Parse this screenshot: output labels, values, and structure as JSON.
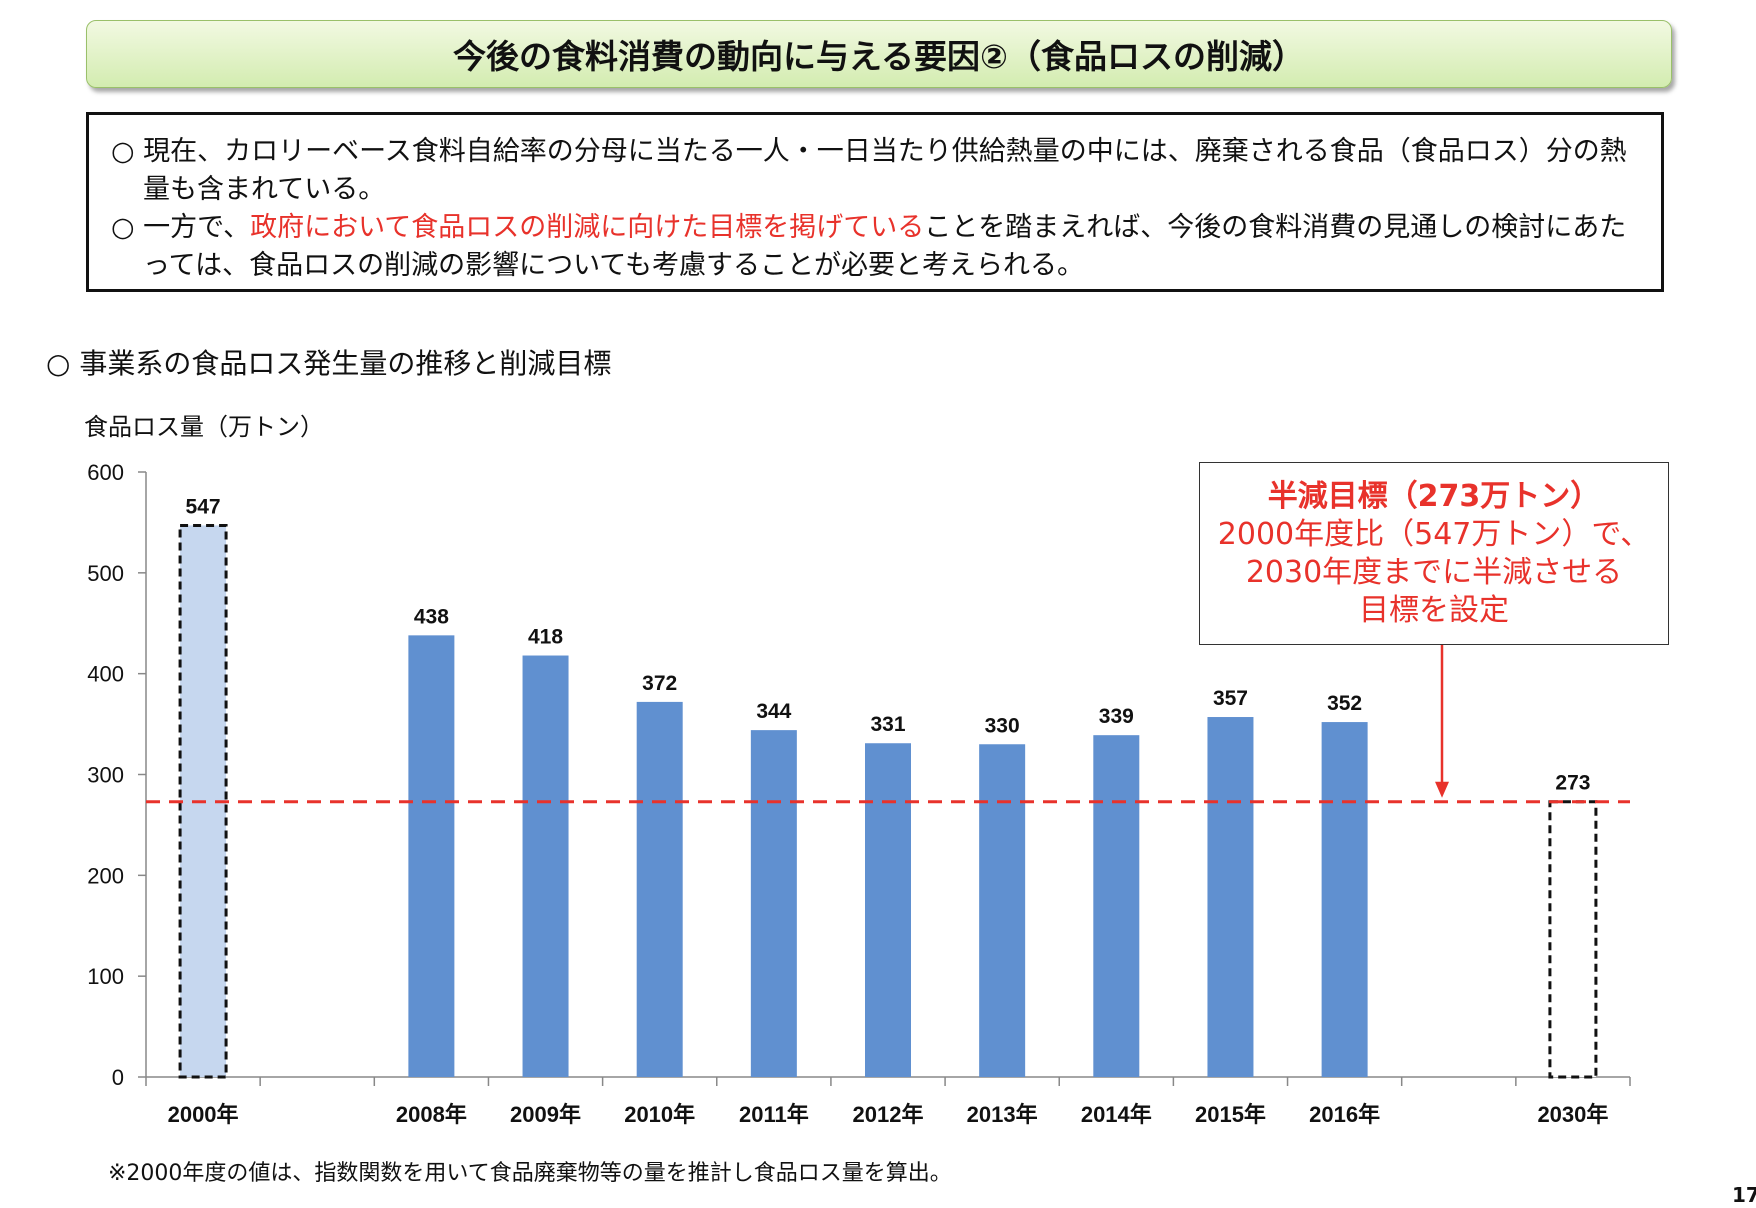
{
  "title": "今後の食料消費の動向に与える要因②（食品ロスの削減）",
  "summary": {
    "p1_bullet": "○",
    "p1_text": "現在、カロリーベース食料自給率の分母に当たる一人・一日当たり供給熱量の中には、廃棄される食品（食品ロス）分の熱量も含まれている。",
    "p2_bullet": "○",
    "p2_pre": "一方で、",
    "p2_red": "政府において食品ロスの削減に向けた目標を掲げている",
    "p2_post": "ことを踏まえれば、今後の食料消費の見通しの検討にあたっては、食品ロスの削減の影響についても考慮することが必要と考えられる。"
  },
  "section_heading": "○ 事業系の食品ロス発生量の推移と削減目標",
  "target_box": {
    "title": "半減目標（273万トン）",
    "line1": "2000年度比（547万トン）で、",
    "line2": "2030年度までに半減させる",
    "line3": "目標を設定"
  },
  "note": "※2000年度の値は、指数関数を用いて食品廃棄物等の量を推計し食品ロス量を算出。",
  "page_number": "17",
  "colors": {
    "bar": "#6090d0",
    "bar_2000": "#c6d7ef",
    "target_line": "#e8322b",
    "title_bg": "#dff0c4"
  },
  "chart_data": {
    "type": "bar",
    "ylabel": "食品ロス量（万トン）",
    "ylim": [
      0,
      600
    ],
    "yticks": [
      0,
      100,
      200,
      300,
      400,
      500,
      600
    ],
    "grid": false,
    "categories": [
      "2000年",
      "",
      "2008年",
      "2009年",
      "2010年",
      "2011年",
      "2012年",
      "2013年",
      "2014年",
      "2015年",
      "2016年",
      "",
      "2030年"
    ],
    "values": [
      547,
      null,
      438,
      418,
      372,
      344,
      331,
      330,
      339,
      357,
      352,
      null,
      273
    ],
    "value_labels": [
      "547",
      "",
      "438",
      "418",
      "372",
      "344",
      "331",
      "330",
      "339",
      "357",
      "352",
      "",
      "273"
    ],
    "bar_styles": [
      "estimate-dashed",
      "",
      "solid",
      "solid",
      "solid",
      "solid",
      "solid",
      "solid",
      "solid",
      "solid",
      "solid",
      "",
      "target-dashed"
    ],
    "reference_line": {
      "value": 273,
      "style": "dashed"
    }
  }
}
